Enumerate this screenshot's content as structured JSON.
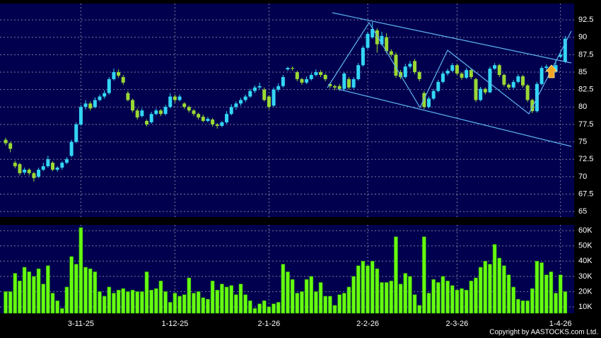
{
  "chart_data": {
    "type": "candlestick",
    "categories": [
      null,
      null,
      null,
      null,
      null,
      null,
      null,
      null,
      null,
      null,
      null,
      null,
      null,
      null,
      null,
      null,
      "3-11-25",
      null,
      null,
      null,
      null,
      null,
      null,
      null,
      null,
      null,
      null,
      null,
      null,
      null,
      null,
      null,
      null,
      null,
      null,
      null,
      "1-12-25",
      null,
      null,
      null,
      null,
      null,
      null,
      null,
      null,
      null,
      null,
      null,
      null,
      null,
      null,
      null,
      null,
      null,
      null,
      null,
      "2-1-26",
      null,
      null,
      null,
      null,
      null,
      null,
      null,
      null,
      null,
      null,
      null,
      null,
      null,
      null,
      null,
      null,
      null,
      null,
      null,
      null,
      "2-2-26",
      null,
      null,
      null,
      null,
      null,
      null,
      null,
      null,
      null,
      null,
      null,
      null,
      null,
      null,
      null,
      null,
      null,
      null,
      "2-3-26",
      null,
      null,
      null,
      null,
      null,
      null,
      null,
      null,
      null,
      null,
      null,
      null,
      null,
      null,
      null,
      null,
      null,
      null,
      null,
      null,
      null,
      "1-4-26",
      null
    ],
    "open": [
      75.3,
      74.8,
      72,
      71.8,
      70.6,
      71,
      70.5,
      70,
      71,
      71.5,
      72,
      71,
      71.3,
      72,
      73,
      75,
      77.5,
      80,
      80.5,
      80,
      81,
      81.5,
      82,
      84,
      85,
      84.3,
      82,
      81,
      79.5,
      78.7,
      78,
      77.8,
      79,
      79.5,
      79,
      80,
      81.5,
      81,
      80.5,
      80,
      79.5,
      79,
      78.6,
      78,
      78.2,
      77.5,
      77.3,
      77.8,
      79,
      80,
      80.5,
      81,
      81.5,
      82.3,
      82.8,
      82.5,
      81.5,
      80.2,
      82.5,
      83,
      85.4,
      85.6,
      85,
      84,
      83.5,
      84,
      84.6,
      85,
      84.6,
      83.3,
      83,
      83,
      82.6,
      84,
      82.8,
      84,
      86,
      88.5,
      90,
      91,
      89,
      90,
      88,
      87.5,
      85,
      84.3,
      85.8,
      86.6,
      85,
      82,
      80,
      81.2,
      82.3,
      83.6,
      84.8,
      85.2,
      86,
      84.8,
      84.2,
      85.3,
      84,
      81,
      82.6,
      82.1,
      85.5,
      86,
      84.6,
      83.2,
      82.8,
      83.6,
      84.4,
      83.1,
      81,
      79.4,
      83.3,
      85.6,
      85.8,
      85.1,
      87.2,
      86.5
    ],
    "high": [
      75.6,
      75,
      72.3,
      72,
      71.3,
      71.2,
      70.7,
      71.3,
      72,
      73,
      72.2,
      71.5,
      72.2,
      72.8,
      75.3,
      77.8,
      80.3,
      81,
      80.8,
      81.4,
      81.8,
      82.4,
      84.3,
      85.5,
      85.4,
      84.6,
      82.3,
      81.2,
      79.8,
      79.8,
      78.2,
      79.3,
      79.8,
      79.7,
      80.3,
      82,
      81.8,
      81.8,
      80.7,
      80.2,
      79.7,
      79.2,
      78.9,
      78.6,
      78.4,
      77.7,
      78,
      79.4,
      80.4,
      80.8,
      81.3,
      81.8,
      82.6,
      83.1,
      83.5,
      82.8,
      81.7,
      82.8,
      83.4,
      84.6,
      85.8,
      85.8,
      85.2,
      84.2,
      84.4,
      84.9,
      85.4,
      85.3,
      84.8,
      83.5,
      83.2,
      83.3,
      85,
      84.3,
      84.3,
      86.3,
      88.8,
      90.8,
      92.2,
      91.3,
      90.8,
      90.6,
      88.3,
      87.8,
      85.3,
      86.2,
      86.6,
      86.9,
      85.2,
      82.3,
      81.5,
      82.6,
      83.9,
      85.1,
      85.5,
      86.3,
      86.2,
      85,
      85.6,
      85.5,
      84.2,
      82.9,
      82.8,
      85.8,
      86.3,
      86.2,
      84.8,
      83.4,
      83.9,
      84.7,
      84.6,
      83.3,
      81.2,
      83.6,
      85.9,
      86.1,
      86,
      86.8,
      87.8,
      90.2
    ],
    "low": [
      74.5,
      73.5,
      71.2,
      70.2,
      70.3,
      70.2,
      69.3,
      69.8,
      70.8,
      71.3,
      70.8,
      70.7,
      71,
      71.8,
      72.8,
      74.8,
      77.3,
      79.6,
      79.5,
      79.8,
      80.8,
      81.2,
      81.8,
      83.8,
      84.2,
      83.2,
      80.8,
      79.2,
      78.2,
      78.5,
      77.2,
      77.6,
      78.8,
      78.7,
      78.8,
      79.8,
      80.6,
      80.8,
      79.7,
      79.2,
      78.7,
      78.2,
      77.8,
      77.8,
      77.2,
      76.9,
      77.1,
      77.6,
      78.8,
      79.6,
      80.2,
      80.7,
      81.3,
      82,
      82.5,
      80.8,
      79.7,
      80,
      82.2,
      82.8,
      85.2,
      85.2,
      83.7,
      83.2,
      83.3,
      83.8,
      84.4,
      84.3,
      83.7,
      82.7,
      82.4,
      82.3,
      82.4,
      82.5,
      82.6,
      83.8,
      85.8,
      88.3,
      89.8,
      87.8,
      88.8,
      87.7,
      87.2,
      84.2,
      84,
      84.1,
      85.5,
      84.7,
      83.7,
      79.7,
      79.8,
      81,
      82.1,
      83.4,
      84.5,
      85,
      84.5,
      83.9,
      84,
      84,
      80.7,
      80.8,
      81.8,
      82,
      85.3,
      84.3,
      82.9,
      82.5,
      82.6,
      83.4,
      82.8,
      80.7,
      79.1,
      79.2,
      83.1,
      85.3,
      84.8,
      84.9,
      87,
      86.3
    ],
    "close": [
      74.8,
      74,
      71.5,
      70.5,
      71,
      70.5,
      69.8,
      71,
      71.5,
      72.5,
      71,
      71.3,
      72,
      72.5,
      75,
      77.5,
      80,
      80.5,
      79.8,
      81,
      81.5,
      82,
      84,
      85,
      84.5,
      83.5,
      81,
      79.5,
      78.5,
      79.5,
      77.5,
      79,
      79.5,
      79,
      80,
      81.5,
      81,
      81.5,
      80,
      79.5,
      79,
      78.5,
      78,
      78.3,
      77.5,
      77.3,
      77.8,
      79,
      80,
      80.5,
      81,
      81.5,
      82.3,
      82.8,
      83,
      81,
      80,
      82.5,
      83,
      84.3,
      85.6,
      85.5,
      84,
      83.5,
      84,
      84.6,
      85,
      84.6,
      84,
      83,
      82.8,
      82.6,
      84.8,
      82.8,
      84,
      86,
      88.5,
      90.5,
      91.2,
      89,
      90.2,
      88,
      87.5,
      84.5,
      84.3,
      85.8,
      86.2,
      85,
      84,
      80,
      81.2,
      82.3,
      83.6,
      84.8,
      85.2,
      86,
      84.8,
      84.2,
      85.3,
      84.3,
      81,
      82.6,
      82.1,
      85.5,
      86,
      84.6,
      83.2,
      82.8,
      83.6,
      84.4,
      83.1,
      81,
      79.4,
      83.3,
      85.6,
      85.8,
      85.1,
      86,
      87.5,
      89.8
    ],
    "volume": [
      20000,
      20000,
      32000,
      27000,
      36000,
      33000,
      30000,
      35000,
      25000,
      37000,
      19000,
      14000,
      9000,
      23000,
      43000,
      38000,
      62000,
      36000,
      35000,
      33000,
      20000,
      17000,
      23000,
      19000,
      21000,
      22000,
      20000,
      21000,
      20000,
      20000,
      33000,
      21000,
      22000,
      27000,
      20000,
      13000,
      19000,
      17000,
      18000,
      29000,
      19000,
      20000,
      16000,
      15000,
      27000,
      21000,
      25000,
      23000,
      24000,
      18000,
      25000,
      18000,
      14000,
      9000,
      12000,
      14000,
      10000,
      12000,
      13000,
      38000,
      33000,
      28000,
      19000,
      20000,
      28000,
      30000,
      20000,
      26000,
      17000,
      17000,
      11000,
      18000,
      19000,
      23000,
      30000,
      37000,
      40000,
      37000,
      40000,
      35000,
      26000,
      26000,
      27000,
      56000,
      25000,
      32000,
      30000,
      18000,
      11000,
      56000,
      19000,
      28000,
      26000,
      30000,
      27000,
      24000,
      21000,
      22000,
      21000,
      27000,
      29000,
      36000,
      40000,
      38000,
      51000,
      42000,
      37000,
      31000,
      23000,
      15000,
      14000,
      14000,
      22000,
      40000,
      39000,
      31000,
      33000,
      19000,
      31000,
      20000
    ],
    "up_color": "#33d6f5",
    "down_color": "#9ad834",
    "volume_color": "#66ff11",
    "ylim": [
      64.2,
      94.85
    ],
    "yticks": [
      65,
      67.5,
      70,
      72.5,
      75,
      77.5,
      80,
      82.5,
      85,
      87.5,
      90,
      92.5
    ],
    "volume_ylim": [
      5800,
      63800
    ],
    "volume_yticks": [
      {
        "value": 10000,
        "label": "10K"
      },
      {
        "value": 20000,
        "label": "20K"
      },
      {
        "value": 30000,
        "label": "30K"
      },
      {
        "value": 40000,
        "label": "40K"
      },
      {
        "value": 50000,
        "label": "50K"
      },
      {
        "value": 60000,
        "label": "60K"
      }
    ],
    "grid": true,
    "copyright": "Copyright by AASTOCKS.com Ltd."
  }
}
